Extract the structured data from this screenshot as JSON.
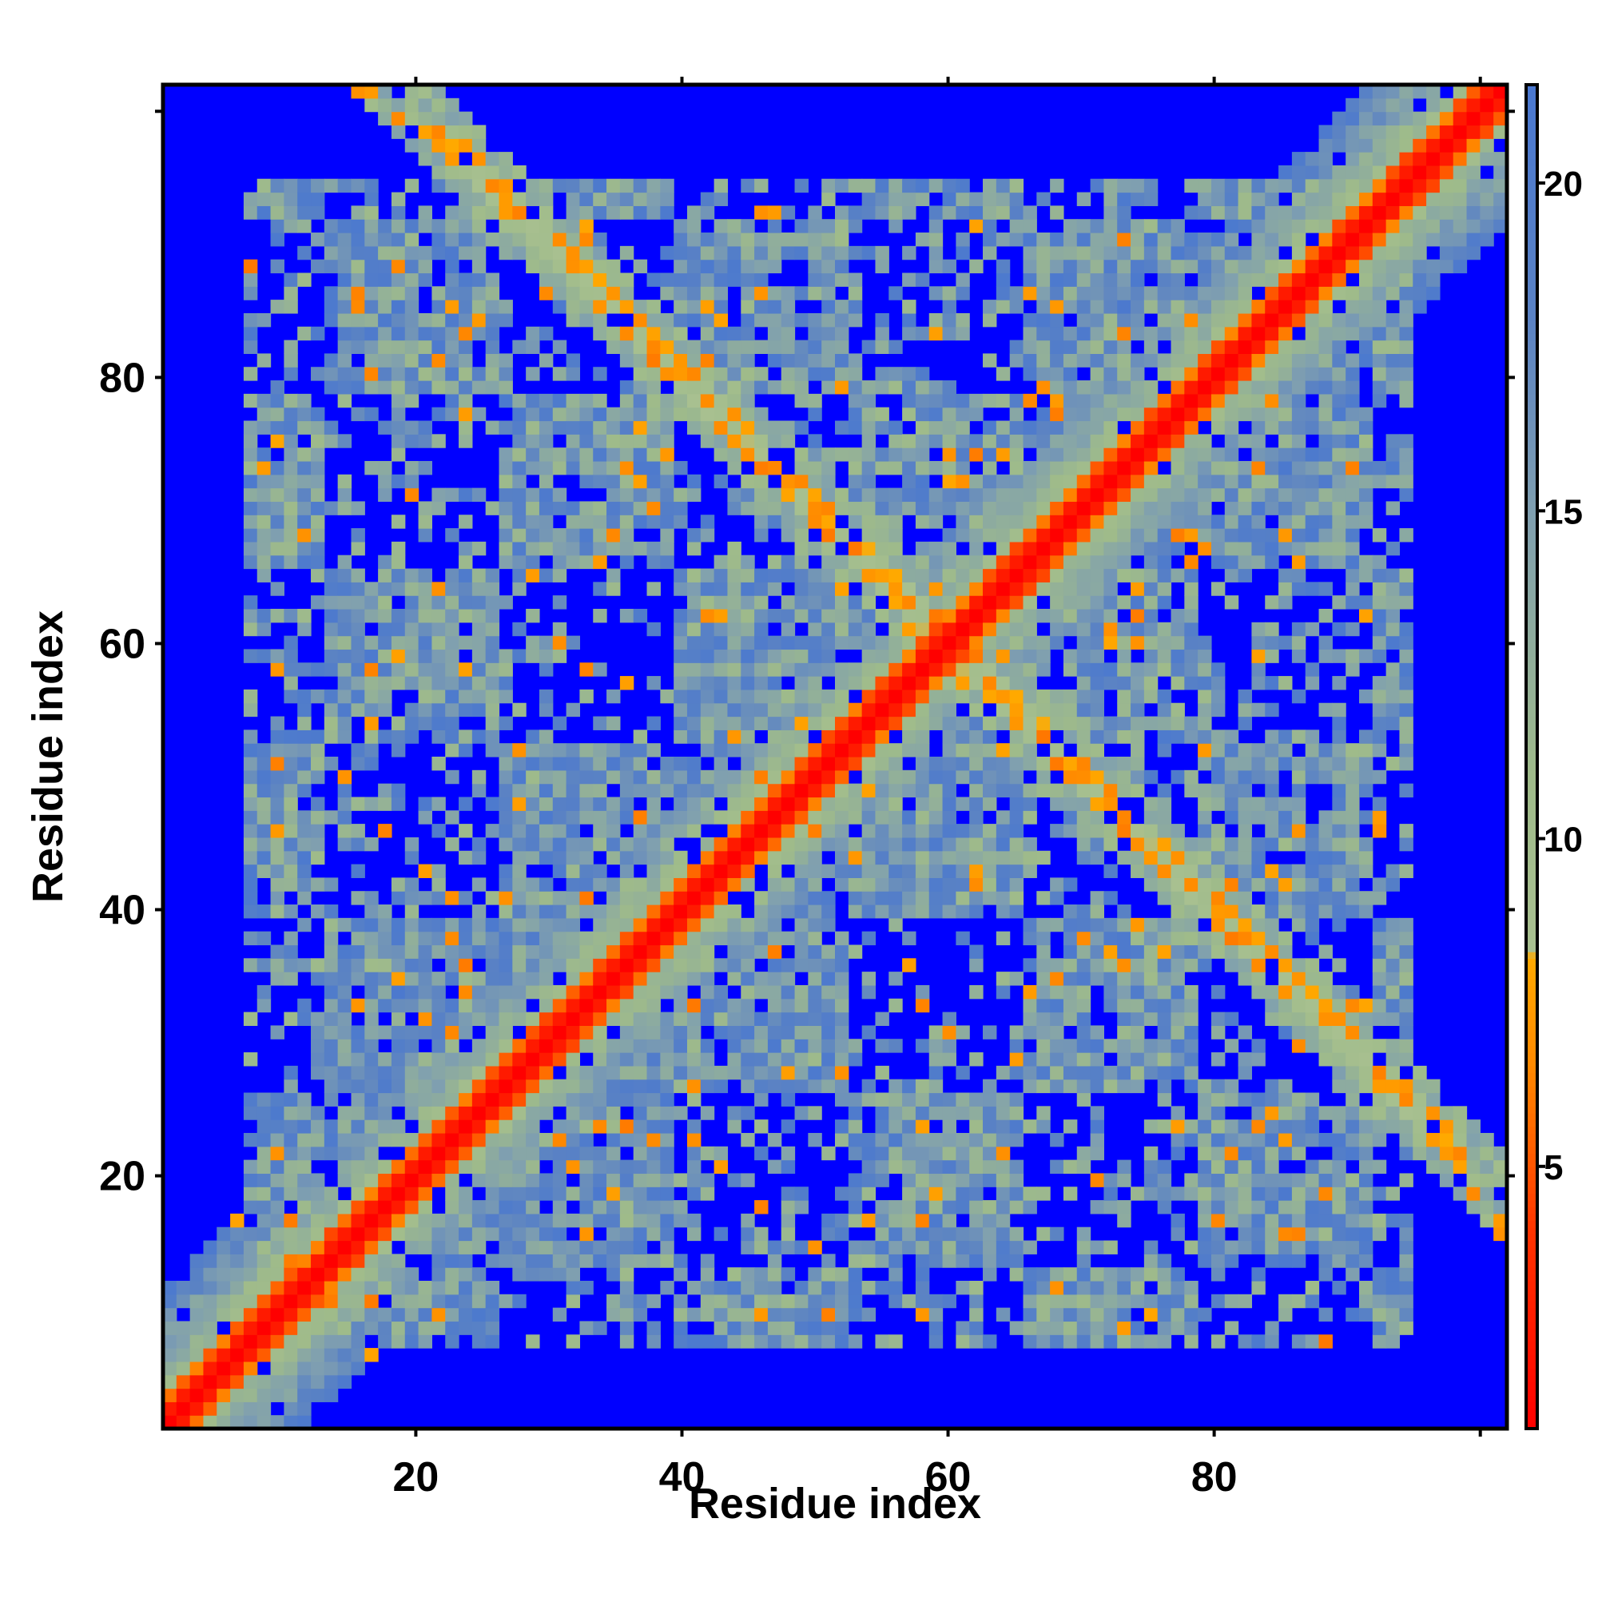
{
  "chart_data": {
    "type": "heatmap",
    "title": "",
    "xlabel": "Residue index",
    "ylabel": "Residue index",
    "xlim": [
      1,
      102
    ],
    "ylim": [
      1,
      102
    ],
    "x_ticks": [
      20,
      40,
      60,
      80
    ],
    "y_ticks": [
      20,
      40,
      60,
      80
    ],
    "x_tick_labels": [
      "20",
      "40",
      "60",
      "80"
    ],
    "y_tick_labels": [
      "20",
      "40",
      "60",
      "80"
    ],
    "colorbar": {
      "range": [
        1,
        21.5
      ],
      "ticks": [
        5,
        10,
        15,
        20
      ],
      "tick_labels": [
        "5",
        "10",
        "15",
        "20"
      ],
      "stops": [
        {
          "value": 1.0,
          "color": "#ff0000"
        },
        {
          "value": 4.0,
          "color": "#ff3300"
        },
        {
          "value": 6.5,
          "color": "#ff8800"
        },
        {
          "value": 8.2,
          "color": "#ffaa00"
        },
        {
          "value": 8.3,
          "color": "#a8c090"
        },
        {
          "value": 11.0,
          "color": "#9fbb8a"
        },
        {
          "value": 15.0,
          "color": "#7f9fb0"
        },
        {
          "value": 18.0,
          "color": "#5a82c4"
        },
        {
          "value": 21.5,
          "color": "#4a78d0"
        }
      ],
      "background_color": "#0000ff"
    },
    "matrix_description": "Symmetric residue-residue distance map; red main diagonal (distance < 4), orange near-diagonal band, secondary anti-diagonal cross contacts, blue beyond cutoff (> 21)",
    "cutoff": 21.5
  },
  "colors": {
    "background": "#0000ff",
    "near": "#ff0000",
    "mid": "#ff9900",
    "far": "#a0bb8c"
  }
}
